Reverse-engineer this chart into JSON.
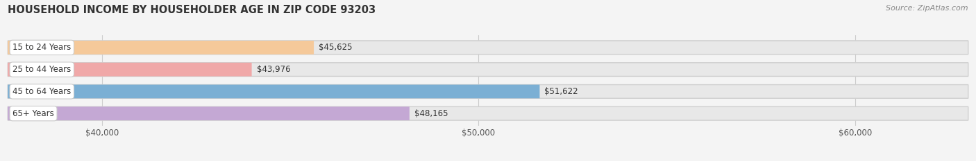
{
  "title": "HOUSEHOLD INCOME BY HOUSEHOLDER AGE IN ZIP CODE 93203",
  "source": "Source: ZipAtlas.com",
  "categories": [
    "15 to 24 Years",
    "25 to 44 Years",
    "45 to 64 Years",
    "65+ Years"
  ],
  "values": [
    45625,
    43976,
    51622,
    48165
  ],
  "bar_colors": [
    "#f5c99a",
    "#f0a8a8",
    "#7bafd4",
    "#c4a8d4"
  ],
  "value_labels": [
    "$45,625",
    "$43,976",
    "$51,622",
    "$48,165"
  ],
  "xmin": 37500,
  "xmax": 63000,
  "xticks": [
    40000,
    50000,
    60000
  ],
  "xtick_labels": [
    "$40,000",
    "$50,000",
    "$60,000"
  ],
  "background_color": "#f4f4f4",
  "bar_bg_color": "#e8e8e8",
  "title_fontsize": 10.5,
  "source_fontsize": 8,
  "bar_height": 0.62,
  "figsize": [
    14.06,
    2.33
  ],
  "dpi": 100
}
